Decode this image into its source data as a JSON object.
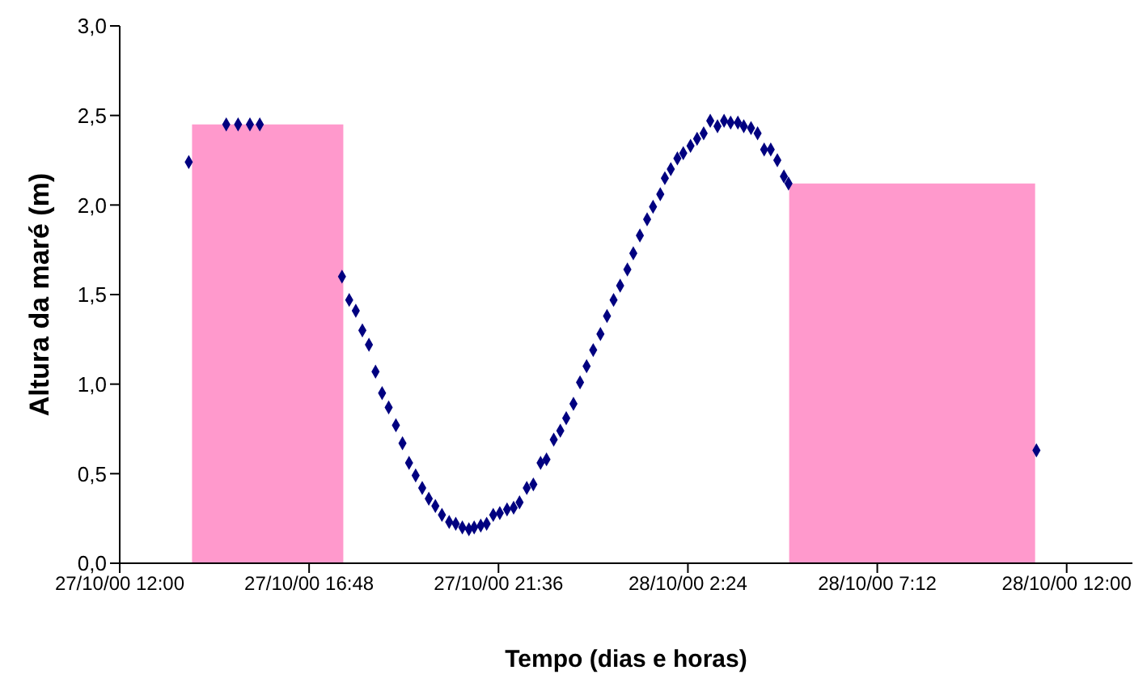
{
  "chart_data": {
    "type": "scatter",
    "xlabel": "Tempo (dias e horas)",
    "ylabel": "Altura da maré (m)",
    "xlim": [
      "2000-10-27T12:00",
      "2000-10-28T13:40"
    ],
    "xticks": [
      {
        "value": "2000-10-27T12:00",
        "label": "27/10/00 12:00"
      },
      {
        "value": "2000-10-27T16:48",
        "label": "27/10/00 16:48"
      },
      {
        "value": "2000-10-27T21:36",
        "label": "27/10/00 21:36"
      },
      {
        "value": "2000-10-28T02:24",
        "label": "28/10/00 2:24"
      },
      {
        "value": "2000-10-28T07:12",
        "label": "28/10/00 7:12"
      },
      {
        "value": "2000-10-28T12:00",
        "label": "28/10/00 12:00"
      }
    ],
    "ylim": [
      0,
      3
    ],
    "yticks": [
      {
        "value": 0,
        "label": "0,0"
      },
      {
        "value": 0.5,
        "label": "0,5"
      },
      {
        "value": 1,
        "label": "1,0"
      },
      {
        "value": 1.5,
        "label": "1,5"
      },
      {
        "value": 2,
        "label": "2,0"
      },
      {
        "value": 2.5,
        "label": "2,5"
      },
      {
        "value": 3,
        "label": "3,0"
      }
    ],
    "grid": false,
    "legend": false,
    "series": [
      {
        "marker": "diamond",
        "color": "#000080",
        "x": [
          "2000-10-27T13:45",
          "2000-10-27T14:42",
          "2000-10-27T15:00",
          "2000-10-27T15:18",
          "2000-10-27T15:33",
          "2000-10-27T17:38",
          "2000-10-27T17:49",
          "2000-10-27T17:59",
          "2000-10-27T18:09",
          "2000-10-27T18:19",
          "2000-10-27T18:29",
          "2000-10-27T18:39",
          "2000-10-27T18:49",
          "2000-10-27T19:00",
          "2000-10-27T19:10",
          "2000-10-27T19:20",
          "2000-10-27T19:30",
          "2000-10-27T19:40",
          "2000-10-27T19:50",
          "2000-10-27T20:00",
          "2000-10-27T20:10",
          "2000-10-27T20:21",
          "2000-10-27T20:31",
          "2000-10-27T20:41",
          "2000-10-27T20:51",
          "2000-10-27T20:59",
          "2000-10-27T21:09",
          "2000-10-27T21:18",
          "2000-10-27T21:28",
          "2000-10-27T21:38",
          "2000-10-27T21:49",
          "2000-10-27T21:59",
          "2000-10-27T22:08",
          "2000-10-27T22:19",
          "2000-10-27T22:29",
          "2000-10-27T22:40",
          "2000-10-27T22:49",
          "2000-10-27T23:00",
          "2000-10-27T23:10",
          "2000-10-27T23:19",
          "2000-10-27T23:30",
          "2000-10-27T23:40",
          "2000-10-27T23:50",
          "2000-10-28T00:00",
          "2000-10-28T00:11",
          "2000-10-28T00:21",
          "2000-10-28T00:31",
          "2000-10-28T00:41",
          "2000-10-28T00:52",
          "2000-10-28T01:01",
          "2000-10-28T01:11",
          "2000-10-28T01:22",
          "2000-10-28T01:31",
          "2000-10-28T01:42",
          "2000-10-28T01:49",
          "2000-10-28T01:58",
          "2000-10-28T02:08",
          "2000-10-28T02:17",
          "2000-10-28T02:28",
          "2000-10-28T02:38",
          "2000-10-28T02:48",
          "2000-10-28T02:58",
          "2000-10-28T03:09",
          "2000-10-28T03:19",
          "2000-10-28T03:29",
          "2000-10-28T03:40",
          "2000-10-28T03:49",
          "2000-10-28T04:00",
          "2000-10-28T04:10",
          "2000-10-28T04:20",
          "2000-10-28T04:30",
          "2000-10-28T04:40",
          "2000-10-28T04:50",
          "2000-10-28T04:57",
          "2000-10-28T11:14"
        ],
        "values": [
          2.24,
          2.45,
          2.45,
          2.45,
          2.45,
          1.6,
          1.47,
          1.41,
          1.3,
          1.22,
          1.07,
          0.95,
          0.87,
          0.77,
          0.67,
          0.56,
          0.49,
          0.42,
          0.36,
          0.32,
          0.27,
          0.23,
          0.22,
          0.2,
          0.19,
          0.2,
          0.21,
          0.22,
          0.27,
          0.28,
          0.3,
          0.31,
          0.34,
          0.42,
          0.44,
          0.56,
          0.58,
          0.69,
          0.74,
          0.81,
          0.89,
          1.01,
          1.1,
          1.19,
          1.28,
          1.38,
          1.47,
          1.55,
          1.64,
          1.73,
          1.83,
          1.92,
          1.99,
          2.06,
          2.15,
          2.2,
          2.26,
          2.29,
          2.33,
          2.37,
          2.4,
          2.47,
          2.44,
          2.47,
          2.46,
          2.46,
          2.44,
          2.43,
          2.4,
          2.31,
          2.31,
          2.25,
          2.16,
          2.12,
          0.63
        ]
      },
      {
        "type": "area",
        "color": "#ff99cc",
        "x": [
          "2000-10-27T13:50",
          "2000-10-27T13:50",
          "2000-10-27T17:40",
          "2000-10-27T17:40"
        ],
        "values": [
          0,
          2.45,
          2.45,
          0
        ]
      },
      {
        "type": "area",
        "color": "#ff99cc",
        "x": [
          "2000-10-28T04:58",
          "2000-10-28T04:58",
          "2000-10-28T11:12",
          "2000-10-28T11:12"
        ],
        "values": [
          0,
          2.12,
          2.12,
          0
        ]
      }
    ]
  }
}
